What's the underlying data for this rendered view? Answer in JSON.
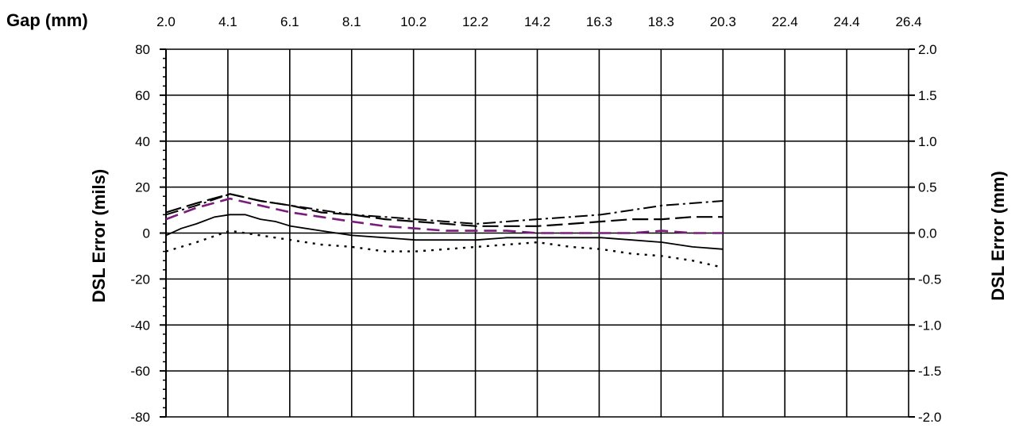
{
  "chart_data": {
    "type": "line",
    "xlabel": "Gap (mm)",
    "ylabel": "DSL Error (mils)",
    "ylabel_right": "DSL Error (mm)",
    "top_ticks": [
      "2.0",
      "4.1",
      "6.1",
      "8.1",
      "10.2",
      "12.2",
      "14.2",
      "16.3",
      "18.3",
      "20.3",
      "22.4",
      "24.4",
      "26.4"
    ],
    "left_ticks": [
      "80",
      "60",
      "40",
      "20",
      "0",
      "-20",
      "-40",
      "-60",
      "-80"
    ],
    "right_ticks": [
      "2.0",
      "1.5",
      "1.0",
      "0.5",
      "0.0",
      "-0.5",
      "-1.0",
      "-1.5",
      "-2.0"
    ],
    "xlim": [
      2.0,
      26.4
    ],
    "ylim": [
      -80,
      80
    ],
    "y2lim": [
      -2.0,
      2.0
    ],
    "grid": true,
    "legend": "none",
    "series": [
      {
        "style": "dash-dot",
        "color": "#000000",
        "x": [
          2.0,
          3.0,
          4.1,
          5.1,
          6.1,
          7.1,
          8.1,
          9.2,
          10.2,
          11.2,
          12.2,
          13.2,
          14.2,
          15.3,
          16.3,
          17.3,
          18.3,
          19.3,
          20.3
        ],
        "y": [
          8,
          12,
          17,
          14,
          12,
          10,
          8,
          7,
          6,
          5,
          4,
          5,
          6,
          7,
          8,
          10,
          12,
          13,
          14
        ]
      },
      {
        "style": "long-dash",
        "color": "#000000",
        "x": [
          2.0,
          3.0,
          4.1,
          5.1,
          6.1,
          7.1,
          8.1,
          9.2,
          10.2,
          11.2,
          12.2,
          13.2,
          14.2,
          15.3,
          16.3,
          17.3,
          18.3,
          19.3,
          20.3
        ],
        "y": [
          9,
          13,
          17,
          14,
          12,
          9,
          8,
          6,
          5,
          4,
          3,
          3,
          3,
          4,
          5,
          6,
          6,
          7,
          7
        ]
      },
      {
        "style": "dash",
        "color": "#7a1c7a",
        "x": [
          2.0,
          3.0,
          4.1,
          5.1,
          6.1,
          7.1,
          8.1,
          9.2,
          10.2,
          11.2,
          12.2,
          13.2,
          14.2,
          15.3,
          16.3,
          17.3,
          18.3,
          19.3,
          20.3
        ],
        "y": [
          6,
          11,
          15,
          12,
          9,
          7,
          5,
          3,
          2,
          1,
          1,
          1,
          0,
          0,
          0,
          0,
          1,
          0,
          0
        ]
      },
      {
        "style": "solid",
        "color": "#000000",
        "x": [
          2.0,
          2.5,
          3.0,
          3.6,
          4.1,
          4.6,
          5.1,
          5.6,
          6.1,
          7.1,
          8.1,
          9.2,
          10.2,
          11.2,
          12.2,
          13.2,
          14.2,
          15.3,
          16.3,
          17.3,
          18.3,
          19.3,
          20.3
        ],
        "y": [
          -1,
          2,
          4,
          7,
          8,
          8,
          6,
          5,
          3,
          1,
          -1,
          -2,
          -3,
          -3,
          -3,
          -2,
          -2,
          -2,
          -2,
          -3,
          -4,
          -6,
          -7
        ]
      },
      {
        "style": "dot",
        "color": "#000000",
        "x": [
          2.0,
          3.0,
          4.1,
          5.1,
          6.1,
          7.1,
          8.1,
          9.2,
          10.2,
          11.2,
          12.2,
          13.2,
          14.2,
          15.3,
          16.3,
          17.3,
          18.3,
          19.3,
          20.3
        ],
        "y": [
          -8,
          -4,
          1,
          -1,
          -3,
          -5,
          -6,
          -8,
          -8,
          -7,
          -6,
          -5,
          -4,
          -6,
          -7,
          -9,
          -10,
          -12,
          -15
        ]
      }
    ]
  }
}
